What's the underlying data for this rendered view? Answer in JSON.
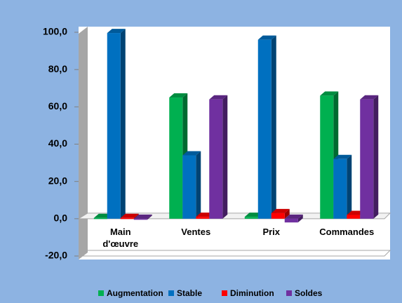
{
  "chart_data": {
    "type": "bar3d",
    "categories": [
      "Main d'œuvre",
      "Ventes",
      "Prix",
      "Commandes"
    ],
    "series": [
      {
        "name": "Augmentation",
        "color": "#00b050",
        "values": [
          0.4,
          65,
          1,
          66
        ]
      },
      {
        "name": "Stable",
        "color": "#0070c0",
        "values": [
          99.6,
          34,
          96,
          32
        ]
      },
      {
        "name": "Diminution",
        "color": "#ff0000",
        "values": [
          0.4,
          1,
          3,
          2
        ]
      },
      {
        "name": "Soldes",
        "color": "#7030a0",
        "values": [
          0,
          64,
          -2,
          64
        ]
      }
    ],
    "ylim": [
      -20,
      100
    ],
    "yticks": [
      {
        "value": -20,
        "label": "-20,0"
      },
      {
        "value": 0,
        "label": "0,0"
      },
      {
        "value": 20,
        "label": "20,0"
      },
      {
        "value": 40,
        "label": "40,0"
      },
      {
        "value": 60,
        "label": "60,0"
      },
      {
        "value": 80,
        "label": "80,0"
      },
      {
        "value": 100,
        "label": "100,0"
      }
    ],
    "grid": false,
    "legend": "bottom"
  }
}
